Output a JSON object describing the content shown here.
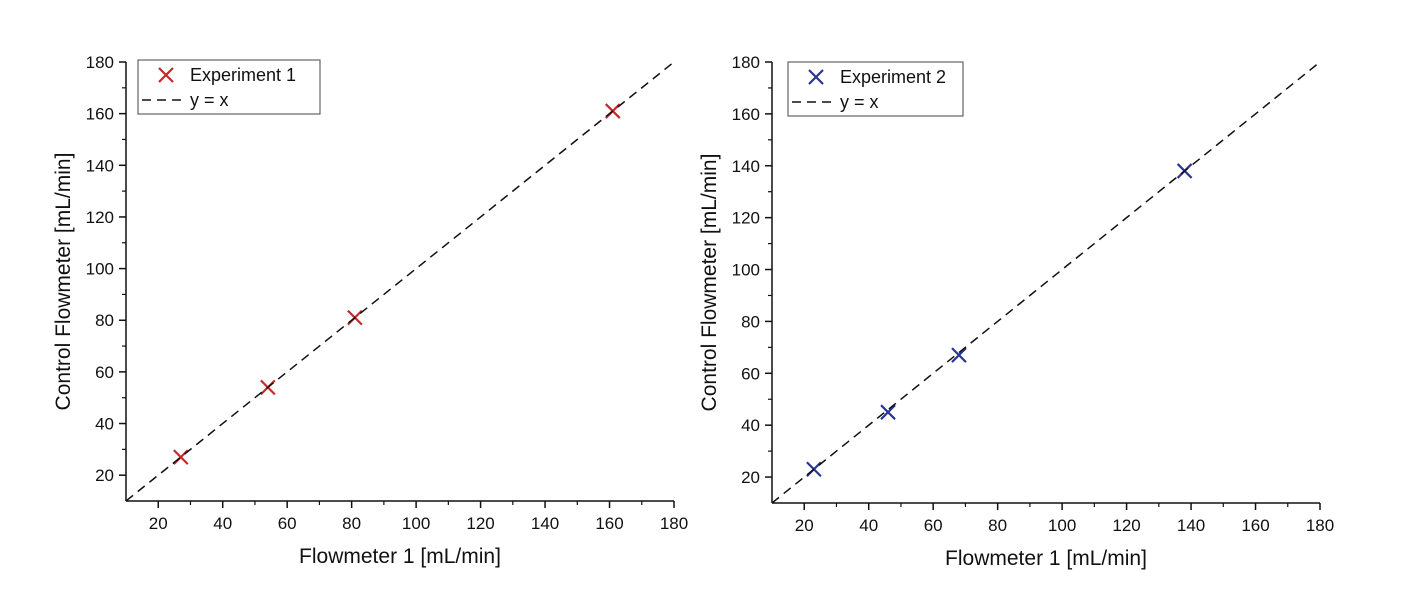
{
  "chart_data": [
    {
      "type": "scatter",
      "title": "",
      "xlabel": "Flowmeter 1 [mL/min]",
      "ylabel": "Control Flowmeter [mL/min]",
      "xlim": [
        10,
        180
      ],
      "ylim": [
        10,
        180
      ],
      "xticks": [
        20,
        40,
        60,
        80,
        100,
        120,
        140,
        160,
        180
      ],
      "yticks": [
        20,
        40,
        60,
        80,
        100,
        120,
        140,
        160,
        180
      ],
      "grid": false,
      "legend_position": "top-left",
      "series": [
        {
          "name": "Experiment 1",
          "marker": "x",
          "color": "#c62828",
          "x": [
            27,
            54,
            81,
            161
          ],
          "y": [
            27,
            54,
            81,
            161
          ]
        },
        {
          "name": "y = x",
          "style": "dashed-line",
          "color": "#111111",
          "x": [
            10,
            180
          ],
          "y": [
            10,
            180
          ]
        }
      ]
    },
    {
      "type": "scatter",
      "title": "",
      "xlabel": "Flowmeter 1 [mL/min]",
      "ylabel": "Control Flowmeter [mL/min]",
      "xlim": [
        10,
        180
      ],
      "ylim": [
        10,
        180
      ],
      "xticks": [
        20,
        40,
        60,
        80,
        100,
        120,
        140,
        160,
        180
      ],
      "yticks": [
        20,
        40,
        60,
        80,
        100,
        120,
        140,
        160,
        180
      ],
      "grid": false,
      "legend_position": "top-left",
      "series": [
        {
          "name": "Experiment 2",
          "marker": "x",
          "color": "#283593",
          "x": [
            23,
            46,
            68,
            138
          ],
          "y": [
            23,
            45,
            67,
            138
          ]
        },
        {
          "name": "y = x",
          "style": "dashed-line",
          "color": "#111111",
          "x": [
            10,
            180
          ],
          "y": [
            10,
            180
          ]
        }
      ]
    }
  ]
}
